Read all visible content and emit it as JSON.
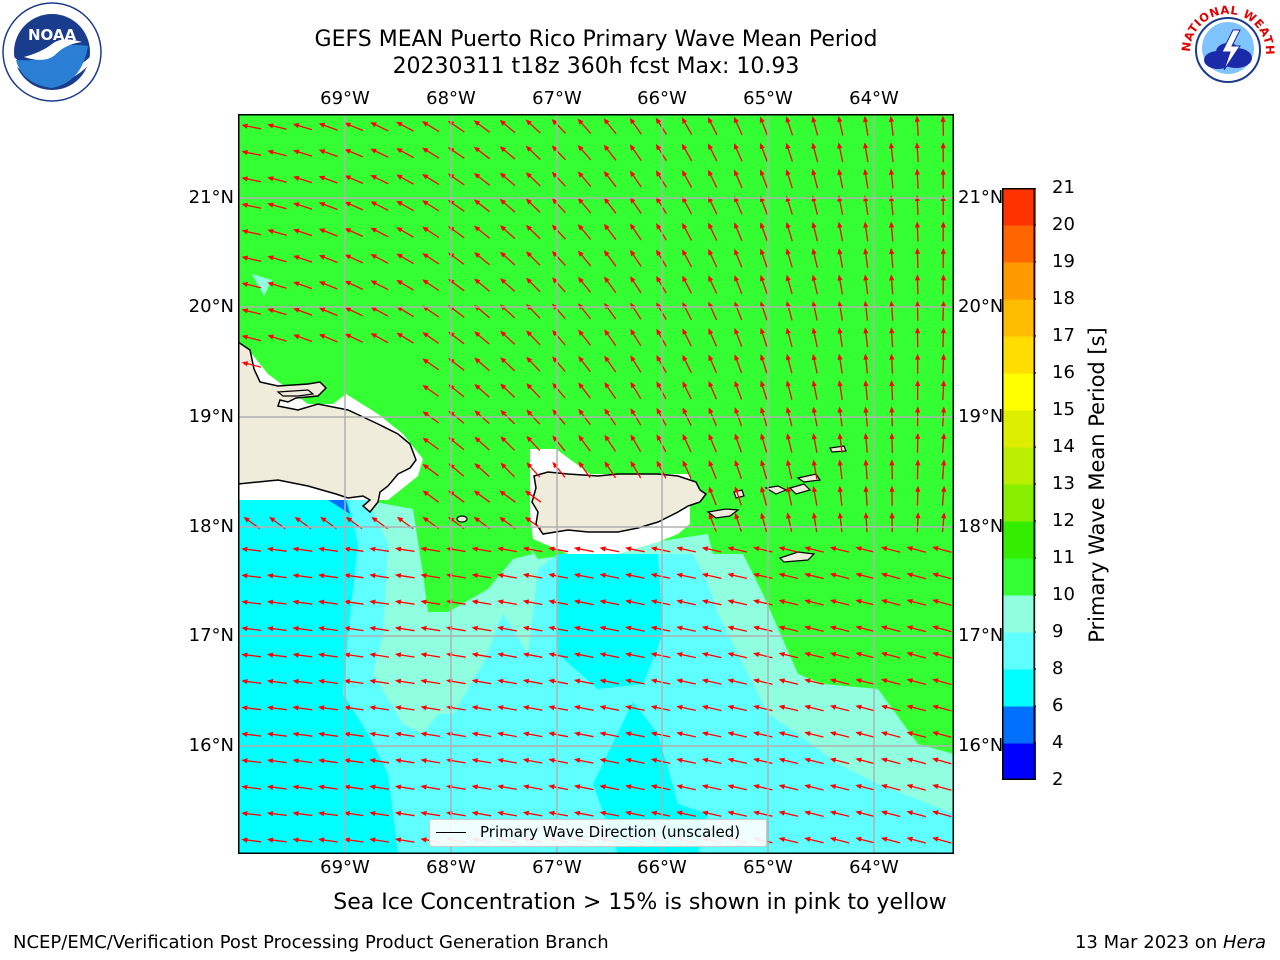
{
  "title_line1": "GEFS MEAN Puerto Rico Primary Wave Mean Period",
  "title_line2": "20230311 t18z 360h fcst   Max: 10.93",
  "lon_ticks": [
    "69°W",
    "68°W",
    "67°W",
    "66°W",
    "65°W",
    "64°W"
  ],
  "lat_ticks": [
    "21°N",
    "20°N",
    "19°N",
    "18°N",
    "17°N",
    "16°N"
  ],
  "colorbar": {
    "title": "Primary Wave Mean Period [s]",
    "labels": [
      "2",
      "4",
      "6",
      "8",
      "9",
      "10",
      "11",
      "12",
      "13",
      "14",
      "15",
      "16",
      "17",
      "18",
      "19",
      "20",
      "21"
    ],
    "colors": [
      "#0000ff",
      "#0070ff",
      "#00ffff",
      "#60ffff",
      "#90ffe0",
      "#33ff33",
      "#33ee00",
      "#88ee00",
      "#bbee00",
      "#ddee00",
      "#ffff00",
      "#ffdd00",
      "#ffbb00",
      "#ff9900",
      "#ff6600",
      "#ff3300",
      "#ff0000"
    ]
  },
  "legend_label": "Primary Wave Direction (unscaled)",
  "caption": "Sea Ice Concentration > 15% is shown in pink to yellow",
  "footer_left": "NCEP/EMC/Verification Post Processing Product Generation Branch",
  "footer_right_date": "13 Mar 2023 on ",
  "footer_right_host": "Hera",
  "logos": {
    "left": "NOAA",
    "right": "NATIONAL WEATHER SERVICE"
  },
  "colors": {
    "arrow": "#ff0000",
    "land": "#efecdc",
    "grid": "#b0b0b0"
  }
}
